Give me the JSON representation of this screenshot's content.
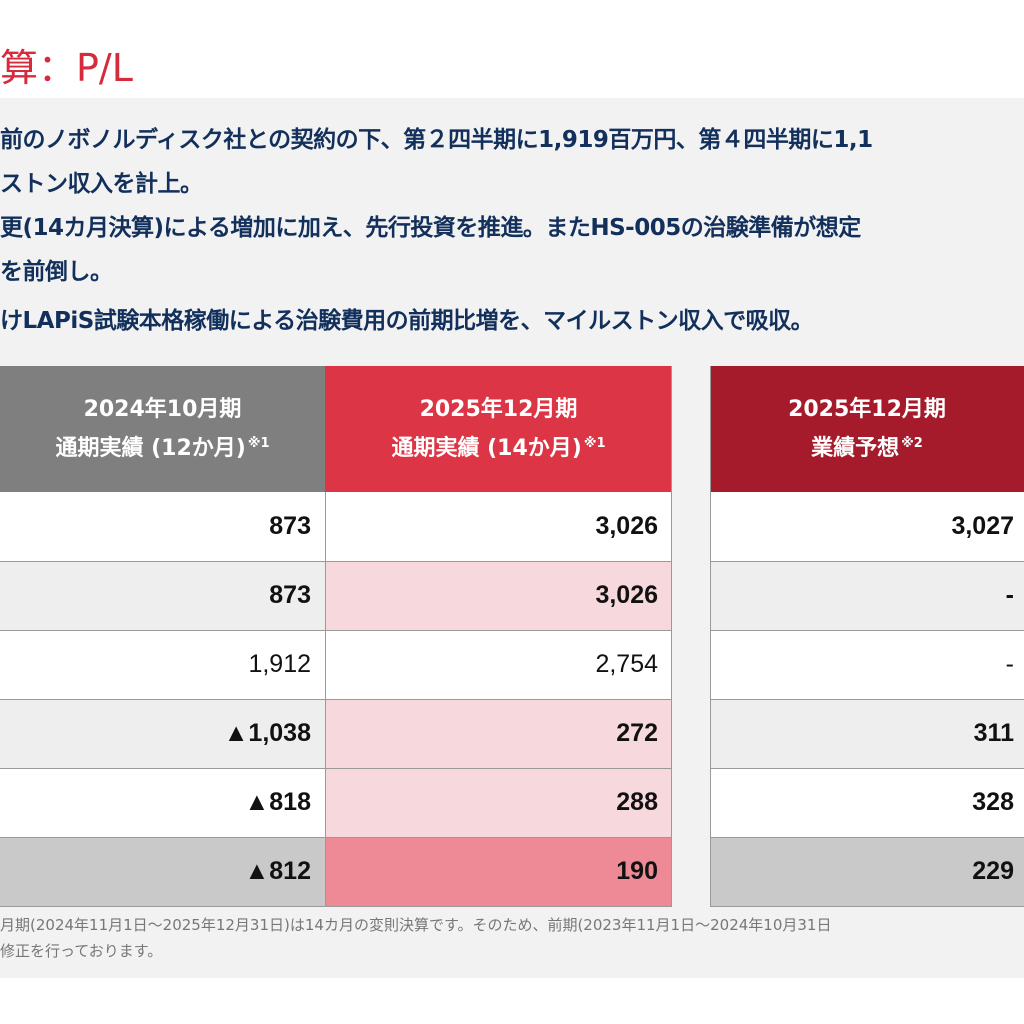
{
  "title": "算：P/L",
  "bullets": [
    "前のノボノルディスク社との契約の下、第２四半期に1,919百万円、第４四半期に1,1",
    "ストン収入を計上。",
    "更(14カ月決算)による増加に加え、先行投資を推進。またHS-005の治験準備が想定",
    "を前倒し。",
    "けLAPiS試験本格稼働による治験費用の前期比増を、マイルストン収入で吸収。"
  ],
  "table": {
    "headers": [
      {
        "line1": "2024年10月期",
        "line2": "通期実績 (12か月)",
        "note": "※1"
      },
      {
        "line1": "2025年12月期",
        "line2": "通期実績 (14か月)",
        "note": "※1"
      },
      {
        "line1": "2025年12月期",
        "line2": "業績予想",
        "note": "※2"
      }
    ],
    "rows": [
      {
        "c1": "873",
        "c2": "3,026",
        "c3": "3,027"
      },
      {
        "c1": "873",
        "c2": "3,026",
        "c3": "-"
      },
      {
        "c1": "1,912",
        "c2": "2,754",
        "c3": "-"
      },
      {
        "c1": "▲1,038",
        "c2": "272",
        "c3": "311"
      },
      {
        "c1": "▲818",
        "c2": "288",
        "c3": "328"
      },
      {
        "c1": "▲812",
        "c2": "190",
        "c3": "229"
      }
    ]
  },
  "footnotes": [
    "月期(2024年11月1日～2025年12月31日)は14カ月の変則決算です。そのため、前期(2023年11月1日～2024年10月31日",
    "修正を行っております。"
  ],
  "colors": {
    "title": "#d62a3d",
    "bullet_text": "#12305b",
    "header_gray": "#7f7f7f",
    "header_red": "#dc3545",
    "header_darkred": "#a61b2b",
    "pink_light": "#f7d8dc",
    "pink_strong": "#ee8a95",
    "row_gray": "#eeeeee",
    "row_total_gray": "#c9c9c9"
  }
}
